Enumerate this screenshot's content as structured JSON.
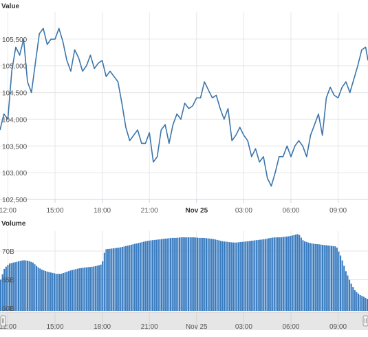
{
  "panels": {
    "value_title": "Value",
    "volume_title": "Volume"
  },
  "colors": {
    "line": "#3a75ab",
    "bar": "#3a7cc0",
    "grid": "#e6e6e6",
    "navigator_bg": "#e6e6e6"
  },
  "chart_data": [
    {
      "type": "line",
      "title": "Value",
      "ylim": [
        102500,
        106000
      ],
      "yticks": [
        "102,500",
        "103,000",
        "103,500",
        "104,000",
        "104,500",
        "105,000",
        "105,500"
      ],
      "x_ticks": [
        "12:00",
        "15:00",
        "18:00",
        "21:00",
        "Nov 25",
        "03:00",
        "06:00",
        "09:00"
      ],
      "x_tick_bold": [
        false,
        false,
        false,
        false,
        true,
        false,
        false,
        false
      ],
      "x_start_hour": 11.5,
      "x_end_hour": 34.9,
      "series": [
        {
          "points": [
            [
              11.5,
              103800
            ],
            [
              11.75,
              104100
            ],
            [
              12.0,
              104000
            ],
            [
              12.25,
              104900
            ],
            [
              12.5,
              105350
            ],
            [
              12.75,
              105200
            ],
            [
              13.0,
              105500
            ],
            [
              13.25,
              104700
            ],
            [
              13.5,
              104500
            ],
            [
              13.75,
              105050
            ],
            [
              14.0,
              105600
            ],
            [
              14.25,
              105700
            ],
            [
              14.5,
              105400
            ],
            [
              14.75,
              105500
            ],
            [
              15.0,
              105500
            ],
            [
              15.25,
              105700
            ],
            [
              15.5,
              105450
            ],
            [
              15.75,
              105100
            ],
            [
              16.0,
              104900
            ],
            [
              16.25,
              105300
            ],
            [
              16.5,
              105150
            ],
            [
              16.75,
              104900
            ],
            [
              17.0,
              105000
            ],
            [
              17.25,
              105200
            ],
            [
              17.5,
              104950
            ],
            [
              17.75,
              105050
            ],
            [
              18.0,
              105100
            ],
            [
              18.25,
              104800
            ],
            [
              18.5,
              104900
            ],
            [
              18.75,
              104800
            ],
            [
              19.0,
              104700
            ],
            [
              19.25,
              104300
            ],
            [
              19.5,
              103850
            ],
            [
              19.75,
              103600
            ],
            [
              20.0,
              103700
            ],
            [
              20.25,
              103800
            ],
            [
              20.5,
              103550
            ],
            [
              20.75,
              103550
            ],
            [
              21.0,
              103750
            ],
            [
              21.25,
              103200
            ],
            [
              21.5,
              103300
            ],
            [
              21.75,
              103800
            ],
            [
              22.0,
              103900
            ],
            [
              22.25,
              103550
            ],
            [
              22.5,
              103900
            ],
            [
              22.75,
              104100
            ],
            [
              23.0,
              104000
            ],
            [
              23.25,
              104300
            ],
            [
              23.5,
              104200
            ],
            [
              23.75,
              104250
            ],
            [
              24.0,
              104400
            ],
            [
              24.25,
              104400
            ],
            [
              24.5,
              104700
            ],
            [
              24.75,
              104550
            ],
            [
              25.0,
              104400
            ],
            [
              25.25,
              104450
            ],
            [
              25.5,
              104200
            ],
            [
              25.75,
              104000
            ],
            [
              26.0,
              104200
            ],
            [
              26.25,
              103600
            ],
            [
              26.5,
              103700
            ],
            [
              26.75,
              103850
            ],
            [
              27.0,
              103700
            ],
            [
              27.25,
              103600
            ],
            [
              27.5,
              103300
            ],
            [
              27.75,
              103450
            ],
            [
              28.0,
              103200
            ],
            [
              28.25,
              103300
            ],
            [
              28.5,
              102900
            ],
            [
              28.75,
              102750
            ],
            [
              29.0,
              103000
            ],
            [
              29.25,
              103300
            ],
            [
              29.5,
              103300
            ],
            [
              29.75,
              103500
            ],
            [
              30.0,
              103300
            ],
            [
              30.25,
              103500
            ],
            [
              30.5,
              103600
            ],
            [
              30.75,
              103500
            ],
            [
              31.0,
              103300
            ],
            [
              31.25,
              103700
            ],
            [
              31.5,
              103900
            ],
            [
              31.75,
              104100
            ],
            [
              32.0,
              103700
            ],
            [
              32.25,
              104400
            ],
            [
              32.5,
              104600
            ],
            [
              32.75,
              104450
            ],
            [
              33.0,
              104400
            ],
            [
              33.25,
              104600
            ],
            [
              33.5,
              104700
            ],
            [
              33.75,
              104500
            ],
            [
              34.0,
              104750
            ],
            [
              34.25,
              105000
            ],
            [
              34.5,
              105300
            ],
            [
              34.75,
              105350
            ],
            [
              34.9,
              105100
            ]
          ]
        }
      ]
    },
    {
      "type": "bar",
      "title": "Volume",
      "ylim": [
        59500000000,
        73500000000
      ],
      "yticks": [
        "60B",
        "65B",
        "70B"
      ],
      "x_ticks": [
        "12:00",
        "15:00",
        "18:00",
        "21:00",
        "Nov 25",
        "03:00",
        "06:00",
        "09:00"
      ],
      "series": [
        {
          "points": [
            [
              11.5,
              64.5
            ],
            [
              11.8,
              67.0
            ],
            [
              12.1,
              67.8
            ],
            [
              12.4,
              68.0
            ],
            [
              12.7,
              68.2
            ],
            [
              13.0,
              68.4
            ],
            [
              13.3,
              68.3
            ],
            [
              13.6,
              68.0
            ],
            [
              13.9,
              67.2
            ],
            [
              14.2,
              66.7
            ],
            [
              14.5,
              66.4
            ],
            [
              14.8,
              66.2
            ],
            [
              15.1,
              66.0
            ],
            [
              15.4,
              66.0
            ],
            [
              15.7,
              66.3
            ],
            [
              16.0,
              66.6
            ],
            [
              16.3,
              66.8
            ],
            [
              16.6,
              67.0
            ],
            [
              16.9,
              67.1
            ],
            [
              17.2,
              67.2
            ],
            [
              17.5,
              67.3
            ],
            [
              17.8,
              67.5
            ],
            [
              18.0,
              67.7
            ],
            [
              18.2,
              70.3
            ],
            [
              18.5,
              70.4
            ],
            [
              18.8,
              70.5
            ],
            [
              19.1,
              70.6
            ],
            [
              19.4,
              70.8
            ],
            [
              19.7,
              71.0
            ],
            [
              20.0,
              71.2
            ],
            [
              20.3,
              71.4
            ],
            [
              20.6,
              71.6
            ],
            [
              20.9,
              71.8
            ],
            [
              21.2,
              71.9
            ],
            [
              21.5,
              72.0
            ],
            [
              21.8,
              72.1
            ],
            [
              22.1,
              72.2
            ],
            [
              22.4,
              72.3
            ],
            [
              22.7,
              72.3
            ],
            [
              23.0,
              72.4
            ],
            [
              23.3,
              72.4
            ],
            [
              23.6,
              72.4
            ],
            [
              23.9,
              72.4
            ],
            [
              24.2,
              72.3
            ],
            [
              24.5,
              72.3
            ],
            [
              24.8,
              72.2
            ],
            [
              25.1,
              72.1
            ],
            [
              25.4,
              71.9
            ],
            [
              25.7,
              71.7
            ],
            [
              26.0,
              71.6
            ],
            [
              26.3,
              71.5
            ],
            [
              26.6,
              71.5
            ],
            [
              26.9,
              71.6
            ],
            [
              27.2,
              71.7
            ],
            [
              27.5,
              71.8
            ],
            [
              27.8,
              71.9
            ],
            [
              28.1,
              72.0
            ],
            [
              28.4,
              72.1
            ],
            [
              28.7,
              72.3
            ],
            [
              29.0,
              72.4
            ],
            [
              29.3,
              72.4
            ],
            [
              29.6,
              72.5
            ],
            [
              29.9,
              72.6
            ],
            [
              30.2,
              72.8
            ],
            [
              30.5,
              73.0
            ],
            [
              30.8,
              71.8
            ],
            [
              31.1,
              71.5
            ],
            [
              31.4,
              71.3
            ],
            [
              31.7,
              71.2
            ],
            [
              32.0,
              71.1
            ],
            [
              32.3,
              71.0
            ],
            [
              32.6,
              70.9
            ],
            [
              32.9,
              70.8
            ],
            [
              33.2,
              69.0
            ],
            [
              33.5,
              66.5
            ],
            [
              33.8,
              64.5
            ],
            [
              34.1,
              63.0
            ],
            [
              34.4,
              62.3
            ],
            [
              34.7,
              61.9
            ],
            [
              34.9,
              61.5
            ]
          ]
        }
      ]
    }
  ]
}
